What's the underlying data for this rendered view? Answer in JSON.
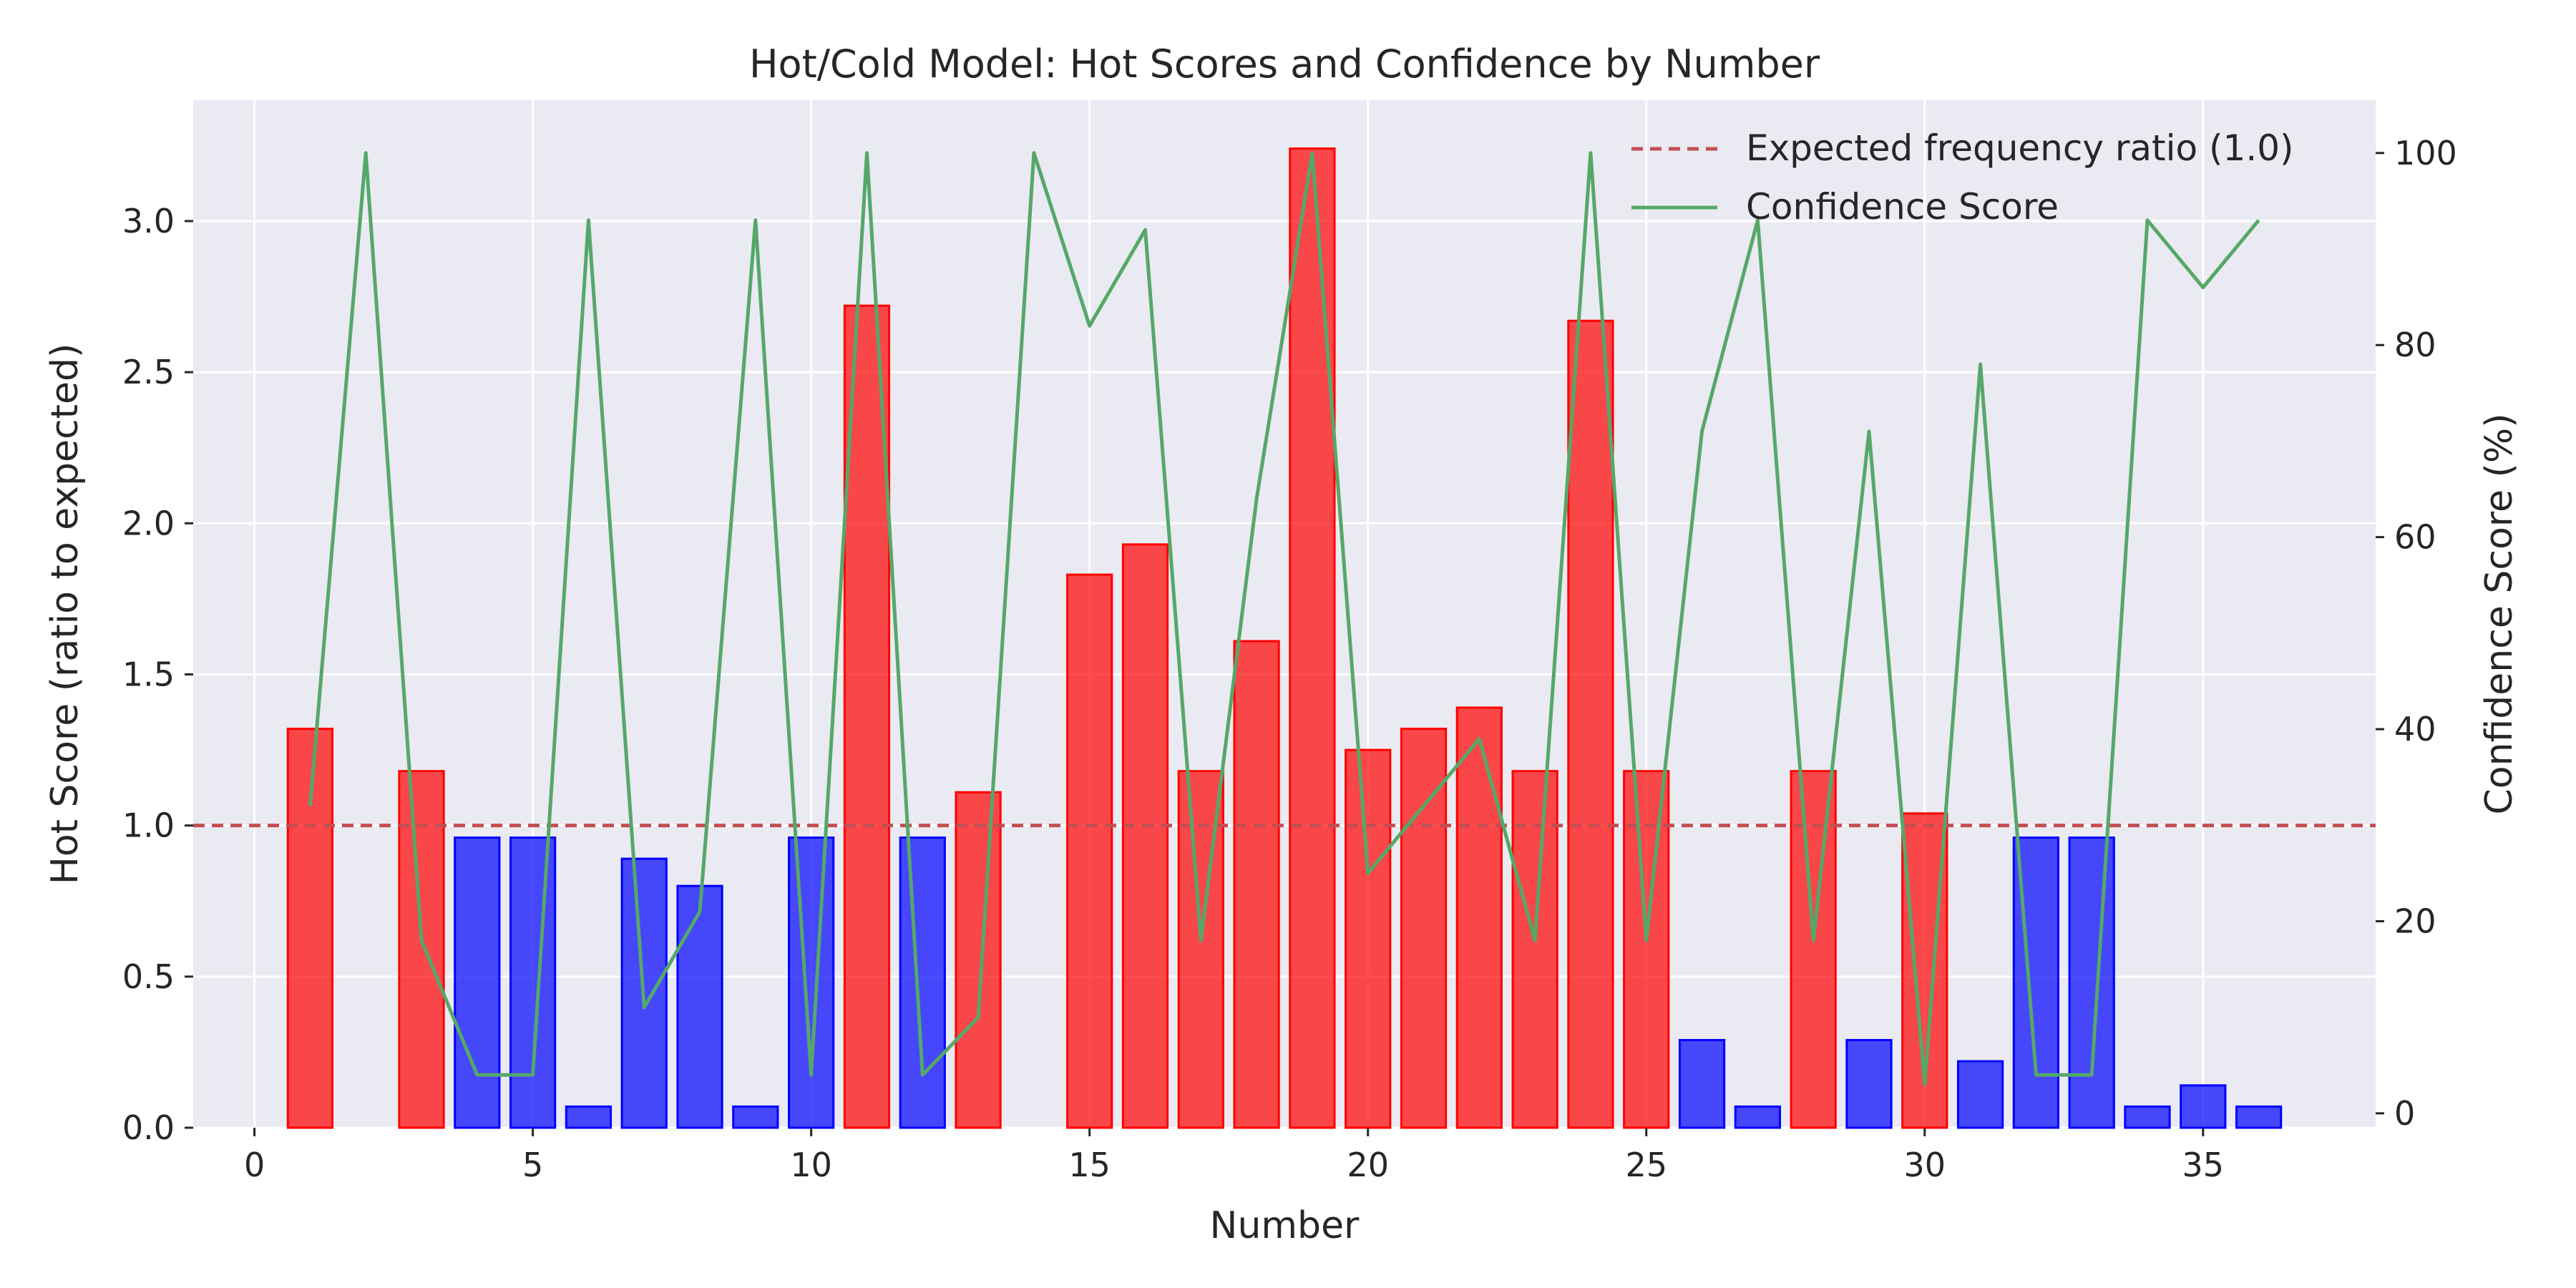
{
  "chart_data": {
    "type": "bar",
    "title": "Hot/Cold Model: Hot Scores and Confidence by Number",
    "xlabel": "Number",
    "ylabel": "Hot Score (ratio to expected)",
    "y2label": "Confidence Score (%)",
    "xlim": [
      -1.1,
      38.1
    ],
    "ylim": [
      0,
      3.4
    ],
    "y2lim": [
      -1.5,
      105.5
    ],
    "xticks": [
      0,
      5,
      10,
      15,
      20,
      25,
      30,
      35
    ],
    "yticks": [
      0.0,
      0.5,
      1.0,
      1.5,
      2.0,
      2.5,
      3.0
    ],
    "ytick_labels": [
      "0.0",
      "0.5",
      "1.0",
      "1.5",
      "2.0",
      "2.5",
      "3.0"
    ],
    "y2ticks": [
      0,
      20,
      40,
      60,
      80,
      100
    ],
    "grid": true,
    "legend_position": "top-right",
    "reference_line": {
      "label": "Expected frequency ratio (1.0)",
      "value": 1.0,
      "color": "#c44e52"
    },
    "colors": {
      "hot": "#ff0000",
      "cold": "#0000ff",
      "confidence": "#55a868",
      "background": "#eaeaf2"
    },
    "bars": [
      {
        "number": 1,
        "value": 1.32,
        "status": "hot"
      },
      {
        "number": 2,
        "value": 0.0,
        "status": "hot"
      },
      {
        "number": 3,
        "value": 1.18,
        "status": "hot"
      },
      {
        "number": 4,
        "value": 0.96,
        "status": "cold"
      },
      {
        "number": 5,
        "value": 0.96,
        "status": "cold"
      },
      {
        "number": 6,
        "value": 0.07,
        "status": "cold"
      },
      {
        "number": 7,
        "value": 0.89,
        "status": "cold"
      },
      {
        "number": 8,
        "value": 0.8,
        "status": "cold"
      },
      {
        "number": 9,
        "value": 0.07,
        "status": "cold"
      },
      {
        "number": 10,
        "value": 0.96,
        "status": "cold"
      },
      {
        "number": 11,
        "value": 2.72,
        "status": "hot"
      },
      {
        "number": 12,
        "value": 0.96,
        "status": "cold"
      },
      {
        "number": 13,
        "value": 1.11,
        "status": "hot"
      },
      {
        "number": 14,
        "value": 0.0,
        "status": "hot"
      },
      {
        "number": 15,
        "value": 1.83,
        "status": "hot"
      },
      {
        "number": 16,
        "value": 1.93,
        "status": "hot"
      },
      {
        "number": 17,
        "value": 1.18,
        "status": "hot"
      },
      {
        "number": 18,
        "value": 1.61,
        "status": "hot"
      },
      {
        "number": 19,
        "value": 3.24,
        "status": "hot"
      },
      {
        "number": 20,
        "value": 1.25,
        "status": "hot"
      },
      {
        "number": 21,
        "value": 1.32,
        "status": "hot"
      },
      {
        "number": 22,
        "value": 1.39,
        "status": "hot"
      },
      {
        "number": 23,
        "value": 1.18,
        "status": "hot"
      },
      {
        "number": 24,
        "value": 2.67,
        "status": "hot"
      },
      {
        "number": 25,
        "value": 1.18,
        "status": "hot"
      },
      {
        "number": 26,
        "value": 0.29,
        "status": "cold"
      },
      {
        "number": 27,
        "value": 0.07,
        "status": "cold"
      },
      {
        "number": 28,
        "value": 1.18,
        "status": "hot"
      },
      {
        "number": 29,
        "value": 0.29,
        "status": "cold"
      },
      {
        "number": 30,
        "value": 1.04,
        "status": "hot"
      },
      {
        "number": 31,
        "value": 0.22,
        "status": "cold"
      },
      {
        "number": 32,
        "value": 0.96,
        "status": "cold"
      },
      {
        "number": 33,
        "value": 0.96,
        "status": "cold"
      },
      {
        "number": 34,
        "value": 0.07,
        "status": "cold"
      },
      {
        "number": 35,
        "value": 0.14,
        "status": "cold"
      },
      {
        "number": 36,
        "value": 0.07,
        "status": "cold"
      }
    ],
    "confidence_series": {
      "name": "Confidence Score",
      "x": [
        1,
        2,
        3,
        4,
        5,
        6,
        7,
        8,
        9,
        10,
        11,
        12,
        13,
        14,
        15,
        16,
        17,
        18,
        19,
        20,
        21,
        22,
        23,
        24,
        25,
        26,
        27,
        28,
        29,
        30,
        31,
        32,
        33,
        34,
        35,
        36
      ],
      "values": [
        32,
        100,
        18,
        4,
        4,
        93,
        11,
        21,
        93,
        4,
        100,
        4,
        10,
        100,
        82,
        92,
        18,
        64,
        100,
        25,
        32,
        39,
        18,
        100,
        18,
        71,
        93,
        18,
        71,
        3,
        78,
        4,
        4,
        93,
        86,
        93
      ]
    }
  }
}
